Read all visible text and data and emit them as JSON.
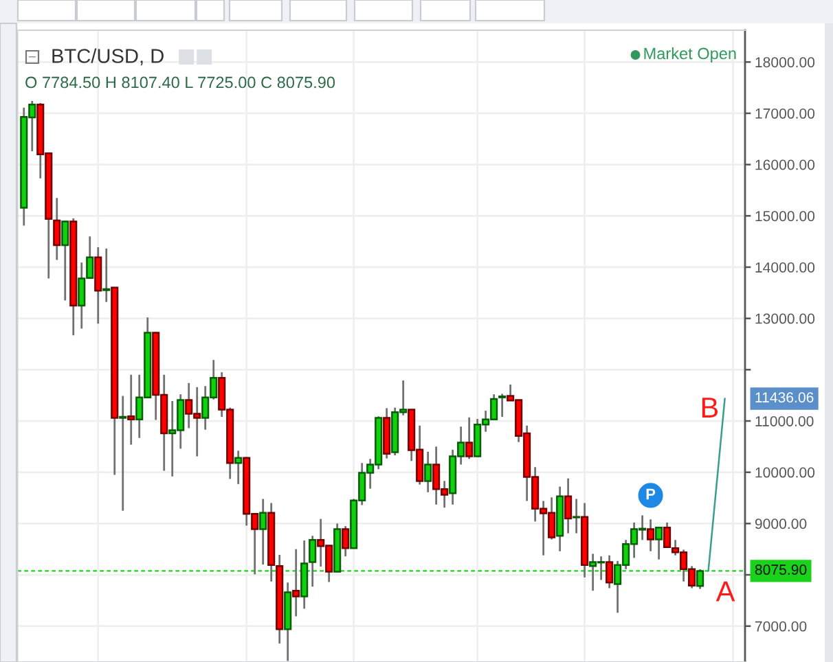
{
  "chart_data": {
    "type": "candlestick",
    "title": "BTC/USD, D",
    "subtitle": "O 7784.50 H 8107.40 L 7725.00 C 8075.90",
    "annotations": [
      "Market Open",
      "A",
      "B",
      "P",
      "11436.06"
    ],
    "categories": [
      null,
      null,
      null,
      null,
      null,
      null,
      null,
      null,
      null,
      null,
      null,
      null,
      null,
      null,
      null,
      null,
      null,
      null,
      null,
      null,
      null,
      null,
      null,
      null,
      null,
      null,
      null,
      null,
      null,
      null,
      null,
      null,
      null,
      null,
      null,
      null,
      null,
      null,
      null,
      null,
      null,
      null,
      null,
      null,
      null,
      null,
      null,
      null,
      null,
      null,
      null,
      null,
      null,
      null,
      null,
      null,
      null,
      null,
      null,
      null,
      null,
      null,
      null,
      null,
      null,
      null,
      null,
      null,
      null,
      null,
      null,
      null,
      null,
      null,
      null,
      null,
      null,
      null,
      null,
      null,
      null,
      null,
      null,
      null,
      null,
      null
    ],
    "ohlc": [
      [
        15160,
        17110,
        14810,
        16930
      ],
      [
        16920,
        17240,
        16260,
        17170
      ],
      [
        17170,
        17200,
        15730,
        16200
      ],
      [
        16220,
        16230,
        13780,
        14940
      ],
      [
        14910,
        15350,
        14140,
        14430
      ],
      [
        14430,
        14900,
        13350,
        14890
      ],
      [
        14890,
        14950,
        12670,
        13250
      ],
      [
        13250,
        14090,
        12800,
        13780
      ],
      [
        13790,
        14600,
        13780,
        14190
      ],
      [
        14190,
        14390,
        12900,
        13540
      ],
      [
        13550,
        14360,
        13320,
        13570
      ],
      [
        13600,
        13610,
        9950,
        11060
      ],
      [
        11060,
        11490,
        9250,
        11080
      ],
      [
        11090,
        11900,
        10540,
        11030
      ],
      [
        11030,
        11900,
        10670,
        11460
      ],
      [
        11460,
        13020,
        11450,
        12720
      ],
      [
        12720,
        12730,
        11020,
        11510
      ],
      [
        11510,
        11900,
        10030,
        10760
      ],
      [
        10760,
        11390,
        9920,
        10820
      ],
      [
        10820,
        11520,
        10460,
        11410
      ],
      [
        11410,
        11740,
        10860,
        11140
      ],
      [
        11140,
        11660,
        10310,
        11060
      ],
      [
        11060,
        11680,
        10830,
        11460
      ],
      [
        11460,
        12190,
        11420,
        11840
      ],
      [
        11840,
        11950,
        11080,
        11220
      ],
      [
        11220,
        11260,
        9870,
        10180
      ],
      [
        10180,
        10420,
        9770,
        10280
      ],
      [
        10280,
        10300,
        8960,
        9190
      ],
      [
        9190,
        9200,
        8010,
        8890
      ],
      [
        8890,
        9480,
        8200,
        9210
      ],
      [
        9210,
        9400,
        7870,
        8190
      ],
      [
        8170,
        8390,
        6660,
        6940
      ],
      [
        6940,
        7850,
        6320,
        7660
      ],
      [
        7690,
        8500,
        7190,
        7580
      ],
      [
        7580,
        8670,
        7340,
        8220
      ],
      [
        8250,
        8760,
        7770,
        8680
      ],
      [
        8680,
        9090,
        8160,
        8560
      ],
      [
        8570,
        8580,
        7860,
        8060
      ],
      [
        8060,
        9000,
        8050,
        8890
      ],
      [
        8890,
        8950,
        8360,
        8520
      ],
      [
        8520,
        9480,
        8510,
        9450
      ],
      [
        9450,
        10180,
        9360,
        9990
      ],
      [
        9990,
        10260,
        9680,
        10150
      ],
      [
        10150,
        11090,
        10060,
        11060
      ],
      [
        11060,
        11250,
        10270,
        10360
      ],
      [
        10390,
        11260,
        10330,
        11170
      ],
      [
        11170,
        11790,
        11110,
        11220
      ],
      [
        11220,
        11230,
        10220,
        10430
      ],
      [
        10440,
        10910,
        9760,
        9830
      ],
      [
        9830,
        10400,
        9610,
        10150
      ],
      [
        10150,
        10500,
        9370,
        9670
      ],
      [
        9670,
        9830,
        9310,
        9560
      ],
      [
        9590,
        10440,
        9370,
        10310
      ],
      [
        10310,
        10890,
        10150,
        10580
      ],
      [
        10580,
        11070,
        10260,
        10310
      ],
      [
        10310,
        11040,
        10300,
        10930
      ],
      [
        10930,
        11200,
        10790,
        11030
      ],
      [
        11030,
        11520,
        11020,
        11430
      ],
      [
        11460,
        11530,
        11080,
        11480
      ],
      [
        11490,
        11710,
        11390,
        11400
      ],
      [
        11410,
        11410,
        10590,
        10710
      ],
      [
        10760,
        10910,
        9440,
        9910
      ],
      [
        9910,
        10100,
        9040,
        9290
      ],
      [
        9290,
        9440,
        8380,
        9200
      ],
      [
        9210,
        9510,
        8690,
        8730
      ],
      [
        8760,
        9720,
        8460,
        9530
      ],
      [
        9530,
        9880,
        8810,
        9100
      ],
      [
        9120,
        9480,
        8810,
        9130
      ],
      [
        9130,
        9400,
        7950,
        8190
      ],
      [
        8170,
        8410,
        7690,
        8250
      ],
      [
        8240,
        8360,
        7900,
        8250
      ],
      [
        8250,
        8380,
        7740,
        7850
      ],
      [
        7820,
        8270,
        7260,
        8190
      ],
      [
        8190,
        8680,
        8110,
        8600
      ],
      [
        8600,
        9020,
        8330,
        8890
      ],
      [
        8880,
        9160,
        8680,
        8900
      ],
      [
        8890,
        9080,
        8460,
        8690
      ],
      [
        8690,
        8930,
        8300,
        8920
      ],
      [
        8920,
        9020,
        8530,
        8540
      ],
      [
        8520,
        8680,
        8380,
        8440
      ],
      [
        8440,
        8490,
        7870,
        8110
      ],
      [
        8110,
        8170,
        7740,
        7790
      ],
      [
        7784.5,
        8107.4,
        7725,
        8075.9
      ],
      null,
      null,
      null
    ],
    "colors": [
      "#10d010",
      "#10d010",
      "#ff0000",
      "#ff0000",
      "#ff0000",
      "#10d010",
      "#ff0000",
      "#10d010",
      "#10d010",
      "#ff0000",
      "#10d010",
      "#ff0000",
      "#10d010",
      "#ff0000",
      "#10d010",
      "#10d010",
      "#ff0000",
      "#ff0000",
      "#10d010",
      "#10d010",
      "#ff0000",
      "#ff0000",
      "#10d010",
      "#10d010",
      "#ff0000",
      "#ff0000",
      "#10d010",
      "#ff0000",
      "#ff0000",
      "#10d010",
      "#ff0000",
      "#ff0000",
      "#10d010",
      "#ff0000",
      "#10d010",
      "#10d010",
      "#ff0000",
      "#ff0000",
      "#10d010",
      "#ff0000",
      "#10d010",
      "#10d010",
      "#10d010",
      "#10d010",
      "#ff0000",
      "#10d010",
      "#10d010",
      "#ff0000",
      "#ff0000",
      "#10d010",
      "#ff0000",
      "#ff0000",
      "#10d010",
      "#10d010",
      "#ff0000",
      "#10d010",
      "#10d010",
      "#10d010",
      "#10d010",
      "#ff0000",
      "#ff0000",
      "#ff0000",
      "#ff0000",
      "#ff0000",
      "#ff0000",
      "#10d010",
      "#ff0000",
      "#10d010",
      "#ff0000",
      "#10d010",
      "#10d010",
      "#ff0000",
      "#10d010",
      "#10d010",
      "#10d010",
      "#10d010",
      "#ff0000",
      "#10d010",
      "#ff0000",
      "#ff0000",
      "#ff0000",
      "#ff0000",
      "#10d010",
      null,
      null,
      null
    ],
    "series": [
      {
        "type": "line",
        "color": "#3a9e8c",
        "values": [
          null,
          null,
          null,
          null,
          null,
          null,
          null,
          null,
          null,
          null,
          null,
          null,
          null,
          null,
          null,
          null,
          null,
          null,
          null,
          null,
          null,
          null,
          null,
          null,
          null,
          null,
          null,
          null,
          null,
          null,
          null,
          null,
          null,
          null,
          null,
          null,
          null,
          null,
          null,
          null,
          null,
          null,
          null,
          null,
          null,
          null,
          null,
          null,
          null,
          null,
          null,
          null,
          null,
          null,
          null,
          null,
          null,
          null,
          null,
          null,
          null,
          null,
          null,
          null,
          null,
          null,
          null,
          null,
          null,
          null,
          null,
          null,
          null,
          null,
          null,
          null,
          null,
          null,
          null,
          null,
          null,
          null,
          null,
          8075.9,
          null,
          11436.06
        ]
      }
    ],
    "ylim": [
      6300,
      18620
    ],
    "yticks": [
      {
        "value": 7000,
        "label": "7000.00"
      },
      {
        "value": 8000,
        "label": null
      },
      {
        "value": 9000,
        "label": "9000.00"
      },
      {
        "value": 10000,
        "label": "10000.00"
      },
      {
        "value": 11000,
        "label": "11000.00"
      },
      {
        "value": 12000,
        "label": null
      },
      {
        "value": 13000,
        "label": "13000.00"
      },
      {
        "value": 14000,
        "label": "14000.00"
      },
      {
        "value": 15000,
        "label": "15000.00"
      },
      {
        "value": 16000,
        "label": "16000.00"
      },
      {
        "value": 17000,
        "label": "17000.00"
      },
      {
        "value": 18000,
        "label": "18000.00"
      }
    ],
    "ref_lines": [
      {
        "axis": "y",
        "value": 8075.9,
        "label": "8075.90",
        "color": "#19d219",
        "line_style": "dashed"
      }
    ],
    "grid": true,
    "tick_labels": "y"
  }
}
